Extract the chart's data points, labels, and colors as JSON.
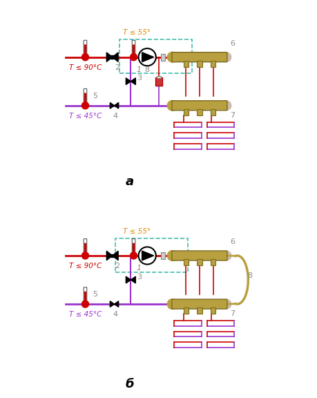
{
  "bg_color": "#ffffff",
  "red_line": "#cc0000",
  "purple_line": "#9933cc",
  "brass_color": "#b8a040",
  "dashed_color": "#44bbaa",
  "temp_orange": "#dd8800",
  "label_red": "#cc0000",
  "label_purple": "#9933cc",
  "label_gray": "#888888",
  "diagram_a_label": "а",
  "diagram_b_label": "б",
  "temp90": "T ≤ 90°C",
  "temp45": "T ≤ 45°C",
  "temp55": "T ≤ 55°",
  "num1": "1",
  "num2": "2",
  "num3": "3",
  "num4": "4",
  "num5": "5",
  "num6": "6",
  "num7": "7",
  "num8": "8"
}
